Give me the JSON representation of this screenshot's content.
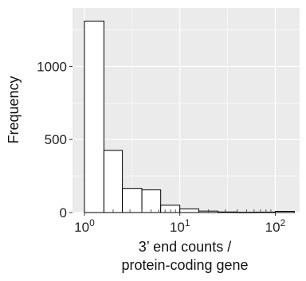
{
  "chart_data": {
    "type": "histogram",
    "x_scale": "log10",
    "xlim": [
      0.75,
      180
    ],
    "ylim": [
      0,
      1400
    ],
    "xlabel": [
      "3’ end counts /",
      "protein-coding gene"
    ],
    "ylabel": "Frequency",
    "x_ticks": [
      {
        "value": 1,
        "base": "10",
        "exp": "0"
      },
      {
        "value": 10,
        "base": "10",
        "exp": "1"
      },
      {
        "value": 100,
        "base": "10",
        "exp": "2"
      }
    ],
    "y_ticks": [
      {
        "value": 0,
        "label": "0"
      },
      {
        "value": 500,
        "label": "500"
      },
      {
        "value": 1000,
        "label": "1000"
      }
    ],
    "bins": [
      {
        "x0": 1.0,
        "x1": 1.6,
        "count": 1310
      },
      {
        "x0": 1.6,
        "x1": 2.5,
        "count": 425
      },
      {
        "x0": 2.5,
        "x1": 4.0,
        "count": 165
      },
      {
        "x0": 4.0,
        "x1": 6.3,
        "count": 155
      },
      {
        "x0": 6.3,
        "x1": 10.0,
        "count": 50
      },
      {
        "x0": 10.0,
        "x1": 15.8,
        "count": 25
      },
      {
        "x0": 15.8,
        "x1": 25.1,
        "count": 10
      },
      {
        "x0": 25.1,
        "x1": 39.8,
        "count": 4
      },
      {
        "x0": 39.8,
        "x1": 63.1,
        "count": 2
      },
      {
        "x0": 63.1,
        "x1": 100.0,
        "count": 3
      },
      {
        "x0": 100.0,
        "x1": 158.5,
        "count": 8
      }
    ],
    "grid": true,
    "colors": {
      "panel": "#ebebeb",
      "grid": "#ffffff",
      "bar_fill": "#ffffff",
      "bar_stroke": "#000000"
    }
  }
}
